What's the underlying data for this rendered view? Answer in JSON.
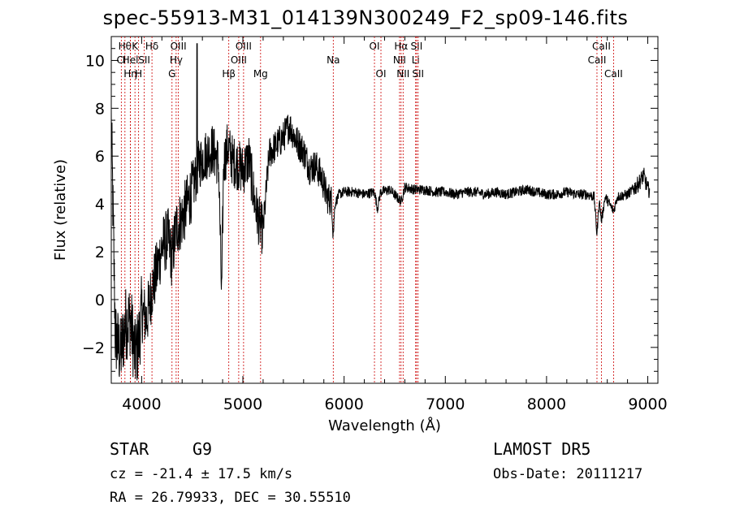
{
  "title": "spec-55913-M31_014139N300249_F2_sp09-146.fits",
  "info": {
    "class": "STAR",
    "subclass": "G9",
    "cz": "cz = -21.4 ± 17.5 km/s",
    "coords": "RA =  26.79933, DEC =  30.55510",
    "survey": "LAMOST DR5",
    "obsdate": "Obs-Date: 20111217"
  },
  "chart_data": {
    "type": "line",
    "xlabel": "Wavelength (Å)",
    "ylabel": "Flux (relative)",
    "xlim": [
      3700,
      9100
    ],
    "ylim": [
      -3.5,
      11.0
    ],
    "xticks": [
      4000,
      5000,
      6000,
      7000,
      8000,
      9000
    ],
    "yticks": [
      -2,
      0,
      2,
      4,
      6,
      8,
      10
    ],
    "xtick_labels": [
      "4000",
      "5000",
      "6000",
      "7000",
      "8000",
      "9000"
    ],
    "ytick_labels": [
      "−2",
      "0",
      "2",
      "4",
      "6",
      "8",
      "10"
    ],
    "grid": false,
    "line_color": "#000000",
    "marker_color": "#cc0000",
    "spectrum_anchors": [
      [
        3700,
        7.5
      ],
      [
        3740,
        -1.5
      ],
      [
        3790,
        -2.3
      ],
      [
        3840,
        -1.0
      ],
      [
        3890,
        -0.8
      ],
      [
        3935,
        -2.4
      ],
      [
        3970,
        -1.8
      ],
      [
        4000,
        -0.5
      ],
      [
        4050,
        -0.8
      ],
      [
        4100,
        0.4
      ],
      [
        4150,
        1.2
      ],
      [
        4200,
        2.2
      ],
      [
        4260,
        2.6
      ],
      [
        4300,
        1.7
      ],
      [
        4340,
        3.0
      ],
      [
        4400,
        3.4
      ],
      [
        4460,
        4.1
      ],
      [
        4520,
        4.9
      ],
      [
        4570,
        5.7
      ],
      [
        4620,
        6.0
      ],
      [
        4700,
        6.3
      ],
      [
        4760,
        5.7
      ],
      [
        4790,
        0.1
      ],
      [
        4810,
        5.7
      ],
      [
        4850,
        6.4
      ],
      [
        4900,
        5.8
      ],
      [
        4960,
        5.6
      ],
      [
        5000,
        5.4
      ],
      [
        5060,
        5.9
      ],
      [
        5120,
        4.0
      ],
      [
        5170,
        3.1
      ],
      [
        5200,
        2.9
      ],
      [
        5260,
        6.1
      ],
      [
        5320,
        6.4
      ],
      [
        5400,
        6.8
      ],
      [
        5460,
        7.3
      ],
      [
        5520,
        6.7
      ],
      [
        5600,
        6.2
      ],
      [
        5660,
        5.5
      ],
      [
        5720,
        5.6
      ],
      [
        5780,
        5.1
      ],
      [
        5830,
        4.3
      ],
      [
        5880,
        4.1
      ],
      [
        5893,
        2.8
      ],
      [
        5910,
        4.0
      ],
      [
        5950,
        4.4
      ],
      [
        6000,
        4.5
      ],
      [
        6100,
        4.5
      ],
      [
        6200,
        4.4
      ],
      [
        6300,
        4.5
      ],
      [
        6330,
        3.8
      ],
      [
        6360,
        4.5
      ],
      [
        6450,
        4.6
      ],
      [
        6563,
        4.1
      ],
      [
        6600,
        4.7
      ],
      [
        6700,
        4.6
      ],
      [
        6800,
        4.6
      ],
      [
        6900,
        4.5
      ],
      [
        7000,
        4.5
      ],
      [
        7100,
        4.4
      ],
      [
        7200,
        4.5
      ],
      [
        7300,
        4.5
      ],
      [
        7400,
        4.4
      ],
      [
        7500,
        4.5
      ],
      [
        7600,
        4.4
      ],
      [
        7700,
        4.5
      ],
      [
        7800,
        4.6
      ],
      [
        7900,
        4.5
      ],
      [
        8000,
        4.4
      ],
      [
        8100,
        4.4
      ],
      [
        8200,
        4.5
      ],
      [
        8300,
        4.4
      ],
      [
        8400,
        4.4
      ],
      [
        8470,
        4.3
      ],
      [
        8498,
        2.7
      ],
      [
        8520,
        4.2
      ],
      [
        8542,
        3.3
      ],
      [
        8580,
        4.3
      ],
      [
        8662,
        3.7
      ],
      [
        8700,
        4.3
      ],
      [
        8800,
        4.4
      ],
      [
        8900,
        4.8
      ],
      [
        8960,
        5.2
      ],
      [
        9000,
        4.6
      ]
    ],
    "line_markers": [
      {
        "x": 3799,
        "label": "Cl",
        "row": 1
      },
      {
        "x": 3835,
        "label": "Hθ",
        "row": 0
      },
      {
        "x": 3889,
        "label": "Hη",
        "row": 2
      },
      {
        "x": 3934,
        "label": "K",
        "row": 0
      },
      {
        "x": 3970,
        "label": "H",
        "row": 2
      },
      {
        "x": 3889,
        "label": "Hel",
        "row": 1
      },
      {
        "x": 4026,
        "label": "SII",
        "row": 1
      },
      {
        "x": 4102,
        "label": "Hδ",
        "row": 0
      },
      {
        "x": 4300,
        "label": "G",
        "row": 2
      },
      {
        "x": 4341,
        "label": "Hγ",
        "row": 1
      },
      {
        "x": 4363,
        "label": "OIII",
        "row": 0
      },
      {
        "x": 4861,
        "label": "Hβ",
        "row": 2
      },
      {
        "x": 4959,
        "label": "OIII",
        "row": 1
      },
      {
        "x": 5007,
        "label": "OIII",
        "row": 0
      },
      {
        "x": 5175,
        "label": "Mg",
        "row": 2
      },
      {
        "x": 5893,
        "label": "Na",
        "row": 1
      },
      {
        "x": 6300,
        "label": "OI",
        "row": 0
      },
      {
        "x": 6364,
        "label": "OI",
        "row": 2
      },
      {
        "x": 6548,
        "label": "NII",
        "row": 1
      },
      {
        "x": 6563,
        "label": "Hα",
        "row": 0
      },
      {
        "x": 6583,
        "label": "NII",
        "row": 2
      },
      {
        "x": 6707,
        "label": "Li",
        "row": 1
      },
      {
        "x": 6716,
        "label": "SII",
        "row": 0
      },
      {
        "x": 6731,
        "label": "SII",
        "row": 2
      },
      {
        "x": 8498,
        "label": "CaII",
        "row": 1
      },
      {
        "x": 8542,
        "label": "CaII",
        "row": 0
      },
      {
        "x": 8662,
        "label": "CaII",
        "row": 2
      }
    ]
  }
}
